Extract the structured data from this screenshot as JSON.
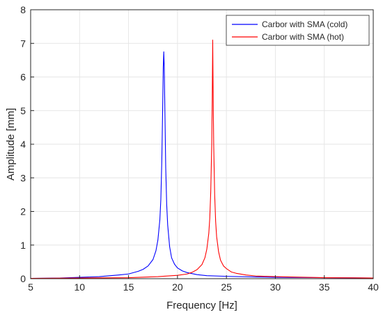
{
  "chart_data": {
    "type": "line",
    "title": "",
    "xlabel": "Frequency [Hz]",
    "ylabel": "Amplitude [mm]",
    "xlim": [
      5,
      40
    ],
    "ylim": [
      0,
      8
    ],
    "xticks": [
      5,
      10,
      15,
      20,
      25,
      30,
      35,
      40
    ],
    "yticks": [
      0,
      1,
      2,
      3,
      4,
      5,
      6,
      7,
      8
    ],
    "xtick_labels": [
      "5",
      "10",
      "15",
      "20",
      "25",
      "30",
      "35",
      "40"
    ],
    "ytick_labels": [
      "0",
      "1",
      "2",
      "3",
      "4",
      "5",
      "6",
      "7",
      "8"
    ],
    "grid": true,
    "legend_position": "top-right",
    "series": [
      {
        "name": "Carbor with SMA (cold)",
        "color": "#0000ff",
        "peak_frequency": 18.6,
        "peak_amplitude": 6.75,
        "x": [
          5,
          8,
          10,
          12,
          14,
          15,
          16,
          16.5,
          17,
          17.5,
          17.8,
          18.0,
          18.2,
          18.3,
          18.4,
          18.5,
          18.55,
          18.6,
          18.65,
          18.7,
          18.8,
          18.9,
          19.0,
          19.2,
          19.4,
          19.7,
          20,
          20.5,
          21,
          22,
          23,
          25,
          28,
          30,
          35,
          40
        ],
        "values": [
          0.01,
          0.02,
          0.04,
          0.06,
          0.11,
          0.14,
          0.22,
          0.28,
          0.38,
          0.57,
          0.83,
          1.15,
          1.75,
          2.35,
          3.5,
          5.3,
          6.3,
          6.75,
          6.3,
          5.3,
          3.3,
          2.2,
          1.6,
          0.95,
          0.62,
          0.43,
          0.32,
          0.23,
          0.18,
          0.12,
          0.09,
          0.07,
          0.05,
          0.04,
          0.03,
          0.02
        ]
      },
      {
        "name": "Carbor with SMA (hot)",
        "color": "#ff0000",
        "peak_frequency": 23.6,
        "peak_amplitude": 7.1,
        "x": [
          5,
          10,
          15,
          18,
          20,
          21,
          21.5,
          22,
          22.5,
          22.8,
          23.0,
          23.2,
          23.3,
          23.4,
          23.5,
          23.55,
          23.6,
          23.65,
          23.7,
          23.8,
          23.9,
          24.0,
          24.2,
          24.4,
          24.7,
          25,
          25.5,
          26,
          27,
          28,
          30,
          35,
          40
        ],
        "values": [
          0.01,
          0.02,
          0.03,
          0.06,
          0.1,
          0.14,
          0.19,
          0.27,
          0.42,
          0.62,
          0.88,
          1.35,
          1.8,
          2.6,
          4.0,
          5.3,
          7.1,
          5.3,
          4.0,
          2.5,
          1.7,
          1.25,
          0.8,
          0.55,
          0.38,
          0.3,
          0.2,
          0.16,
          0.11,
          0.08,
          0.06,
          0.03,
          0.02
        ]
      }
    ]
  }
}
